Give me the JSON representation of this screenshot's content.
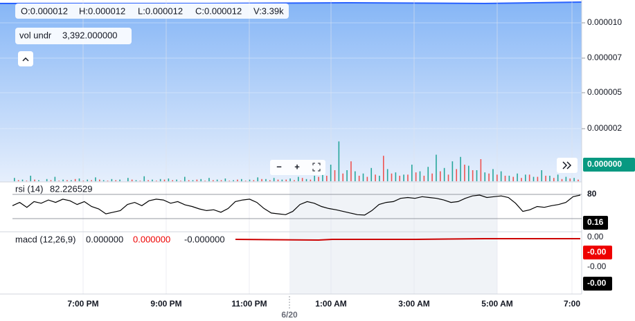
{
  "ohlc_legend": {
    "open": "O:0.000012",
    "high": "H:0.000012",
    "low": "L:0.000012",
    "close": "C:0.000012",
    "volume": "V:3.39k"
  },
  "volume_legend": {
    "name": "vol undr",
    "value": "3,392.000000"
  },
  "rsi_legend": {
    "name": "rsi (14)",
    "value": "82.226529"
  },
  "macd_legend": {
    "name": "macd (12,26,9)",
    "macd": "0.000000",
    "signal": "0.000000",
    "histogram": "-0.000000"
  },
  "price_axis": {
    "ticks": [
      "0.000010",
      "0.000007",
      "0.000005",
      "0.000002"
    ],
    "last": "0.000000"
  },
  "rsi_axis": {
    "ticks": [
      "80"
    ],
    "last": "0.16"
  },
  "macd_axis": {
    "ticks": [
      "0.00",
      "-0.00"
    ],
    "signal_tag": "-0.00",
    "last": "-0.00"
  },
  "time_axis": {
    "ticks": [
      "7:00 PM",
      "9:00 PM",
      "11:00 PM",
      "1:00 AM",
      "3:00 AM",
      "5:00 AM",
      "7:00"
    ],
    "date": "6/20"
  },
  "zoom_controls": {
    "zoom_out": "−",
    "zoom_in": "+"
  },
  "volume": {
    "ylim": [
      0,
      100
    ],
    "up": [
      6,
      3,
      10,
      2,
      4,
      8,
      3,
      2,
      5,
      3,
      7,
      2,
      4,
      3,
      6,
      2,
      9,
      3,
      4,
      5,
      3,
      8,
      2,
      4,
      6,
      3,
      5,
      2,
      4,
      3,
      7,
      4,
      6,
      3,
      5,
      8,
      4,
      10,
      12,
      30,
      72,
      20,
      18,
      14,
      24,
      10,
      22,
      16,
      12,
      30,
      18,
      26,
      48,
      24,
      36,
      44,
      28,
      20,
      16,
      22,
      18,
      10,
      14,
      12,
      8,
      20,
      10,
      12,
      8,
      6
    ],
    "down": [
      2,
      1,
      3,
      0,
      2,
      1,
      2,
      4,
      1,
      2,
      3,
      1,
      2,
      0,
      3,
      1,
      2,
      1,
      3,
      2,
      1,
      2,
      3,
      1,
      2,
      2,
      1,
      3,
      1,
      2,
      4,
      2,
      3,
      3,
      2,
      6,
      3,
      8,
      10,
      20,
      14,
      36,
      10,
      8,
      12,
      46,
      14,
      10,
      12,
      16,
      10,
      14,
      18,
      12,
      22,
      30,
      20,
      40,
      14,
      12,
      10,
      8,
      6,
      12,
      8,
      10,
      6,
      4,
      5,
      3
    ]
  },
  "rsi": {
    "ylim": [
      0,
      100
    ],
    "values": [
      52,
      60,
      48,
      62,
      58,
      66,
      60,
      68,
      64,
      55,
      62,
      50,
      44,
      32,
      36,
      40,
      55,
      60,
      52,
      64,
      68,
      66,
      58,
      62,
      54,
      50,
      44,
      40,
      42,
      36,
      45,
      62,
      66,
      68,
      60,
      45,
      34,
      32,
      30,
      38,
      55,
      62,
      58,
      50,
      45,
      42,
      38,
      34,
      30,
      29,
      40,
      55,
      60,
      62,
      70,
      72,
      70,
      74,
      72,
      70,
      66,
      60,
      62,
      70,
      76,
      78,
      72,
      74,
      76,
      72,
      58,
      38,
      42,
      50,
      48,
      52,
      55,
      60,
      74,
      78
    ]
  }
}
